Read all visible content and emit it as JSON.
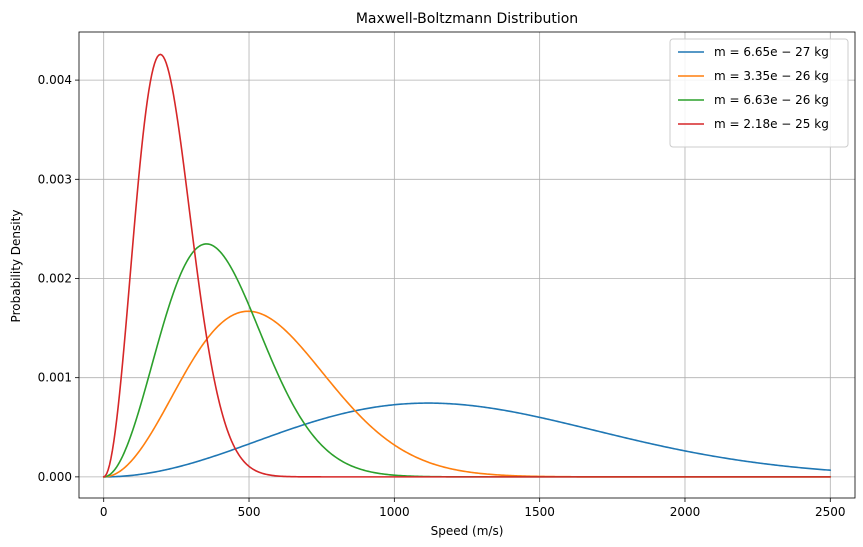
{
  "chart_data": {
    "type": "line",
    "title": "Maxwell-Boltzmann Distribution",
    "xlabel": "Speed (m/s)",
    "ylabel": "Probability Density",
    "xlim": [
      -85,
      2585
    ],
    "ylim": [
      -0.000213,
      0.004485
    ],
    "xticks": [
      0,
      500,
      1000,
      1500,
      2000,
      2500
    ],
    "xtick_labels": [
      "0",
      "500",
      "1000",
      "1500",
      "2000",
      "2500"
    ],
    "yticks": [
      0,
      0.001,
      0.002,
      0.003,
      0.004
    ],
    "ytick_labels": [
      "0.000",
      "0.001",
      "0.002",
      "0.003",
      "0.004"
    ],
    "grid": true,
    "legend_position": "top-right",
    "x_range": [
      0,
      2500
    ],
    "series": [
      {
        "name": "m = 6.65e − 27 kg",
        "mass_kg": 6.65e-27,
        "color": "#1f77b4"
      },
      {
        "name": "m = 3.35e − 26 kg",
        "mass_kg": 3.35e-26,
        "color": "#ff7f0e"
      },
      {
        "name": "m = 6.63e − 26 kg",
        "mass_kg": 6.63e-26,
        "color": "#2ca02c"
      },
      {
        "name": "m = 2.18e − 25 kg",
        "mass_kg": 2.18e-25,
        "color": "#d62728"
      }
    ]
  }
}
